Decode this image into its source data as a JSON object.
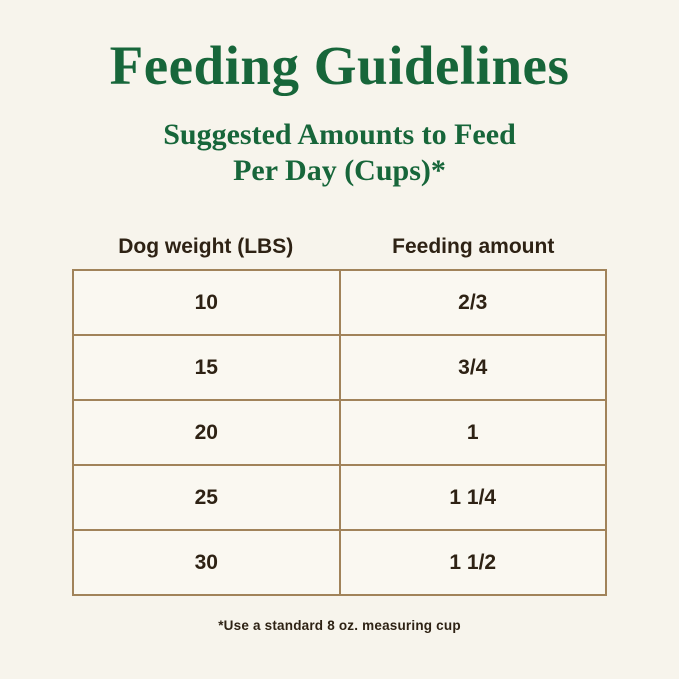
{
  "page": {
    "title": "Feeding Guidelines",
    "subtitle_line1": "Suggested Amounts to Feed",
    "subtitle_line2": "Per Day (Cups)*",
    "footnote": "*Use a standard 8 oz. measuring cup"
  },
  "table": {
    "headers": [
      "Dog weight (LBS)",
      "Feeding amount"
    ],
    "rows": [
      [
        "10",
        "2/3"
      ],
      [
        "15",
        "3/4"
      ],
      [
        "20",
        "1"
      ],
      [
        "25",
        "1 1/4"
      ],
      [
        "30",
        "1 1/2"
      ]
    ]
  },
  "chart_data": {
    "type": "table",
    "title": "Feeding Guidelines",
    "subtitle": "Suggested Amounts to Feed Per Day (Cups)*",
    "columns": [
      "Dog weight (LBS)",
      "Feeding amount"
    ],
    "rows": [
      {
        "dog_weight_lbs": 10,
        "feeding_amount_cups": "2/3"
      },
      {
        "dog_weight_lbs": 15,
        "feeding_amount_cups": "3/4"
      },
      {
        "dog_weight_lbs": 20,
        "feeding_amount_cups": "1"
      },
      {
        "dog_weight_lbs": 25,
        "feeding_amount_cups": "1 1/4"
      },
      {
        "dog_weight_lbs": 30,
        "feeding_amount_cups": "1 1/2"
      }
    ],
    "footnote": "*Use a standard 8 oz. measuring cup"
  },
  "colors": {
    "background": "#f7f4ec",
    "heading_green": "#17663a",
    "table_border": "#a1835a",
    "text_dark": "#2e2214"
  }
}
